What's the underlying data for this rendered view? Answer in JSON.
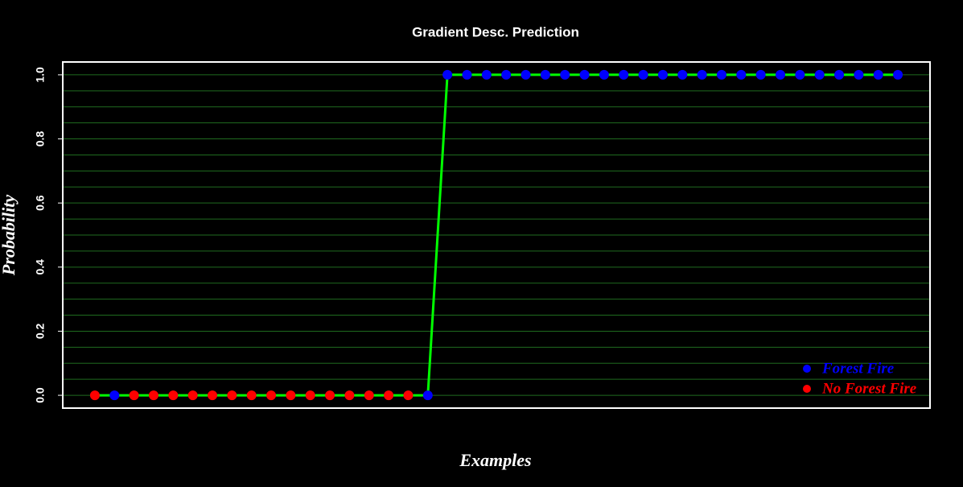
{
  "chart_data": {
    "type": "line",
    "title": "Gradient Desc. Prediction",
    "x_label": "Examples",
    "y_label": "Probability",
    "x": [
      1,
      2,
      3,
      4,
      5,
      6,
      7,
      8,
      9,
      10,
      11,
      12,
      13,
      14,
      15,
      16,
      17,
      18,
      19,
      20,
      21,
      22,
      23,
      24,
      25,
      26,
      27,
      28,
      29,
      30,
      31,
      32,
      33,
      34,
      35,
      36,
      37,
      38,
      39,
      40,
      41,
      42
    ],
    "values": [
      0,
      0,
      0,
      0,
      0,
      0,
      0,
      0,
      0,
      0,
      0,
      0,
      0,
      0,
      0,
      0,
      0,
      0,
      1,
      1,
      1,
      1,
      1,
      1,
      1,
      1,
      1,
      1,
      1,
      1,
      1,
      1,
      1,
      1,
      1,
      1,
      1,
      1,
      1,
      1,
      1,
      1
    ],
    "line_color": "#00ff00",
    "point_colors": [
      "#ff0000",
      "#0000ff",
      "#ff0000",
      "#ff0000",
      "#ff0000",
      "#ff0000",
      "#ff0000",
      "#ff0000",
      "#ff0000",
      "#ff0000",
      "#ff0000",
      "#ff0000",
      "#ff0000",
      "#ff0000",
      "#ff0000",
      "#ff0000",
      "#ff0000",
      "#0000ff",
      "#0000ff",
      "#0000ff",
      "#0000ff",
      "#0000ff",
      "#0000ff",
      "#0000ff",
      "#0000ff",
      "#0000ff",
      "#0000ff",
      "#0000ff",
      "#0000ff",
      "#0000ff",
      "#0000ff",
      "#0000ff",
      "#0000ff",
      "#0000ff",
      "#0000ff",
      "#0000ff",
      "#0000ff",
      "#0000ff",
      "#0000ff",
      "#0000ff",
      "#0000ff",
      "#0000ff"
    ],
    "legend": [
      {
        "label": "Forest Fire",
        "color": "#0000ff"
      },
      {
        "label": "No Forest Fire",
        "color": "#ff0000"
      }
    ],
    "legend_position": "bottom-right",
    "xlim": [
      -0.64,
      43.64
    ],
    "ylim": [
      -0.04,
      1.04
    ],
    "yticks": [
      {
        "value": 0,
        "label": "0.0"
      },
      {
        "value": 0.2,
        "label": "0.2"
      },
      {
        "value": 0.4,
        "label": "0.4"
      },
      {
        "value": 0.6,
        "label": "0.6"
      },
      {
        "value": 0.8,
        "label": "0.8"
      },
      {
        "value": 1,
        "label": "1.0"
      }
    ],
    "grid": true,
    "grid_color": "#1f6b1f",
    "grid_y": [
      0,
      0.05,
      0.1,
      0.15,
      0.2,
      0.25,
      0.3,
      0.35,
      0.4,
      0.45,
      0.5,
      0.55,
      0.6,
      0.65,
      0.7,
      0.75,
      0.8,
      0.85,
      0.9,
      0.95,
      1
    ]
  }
}
